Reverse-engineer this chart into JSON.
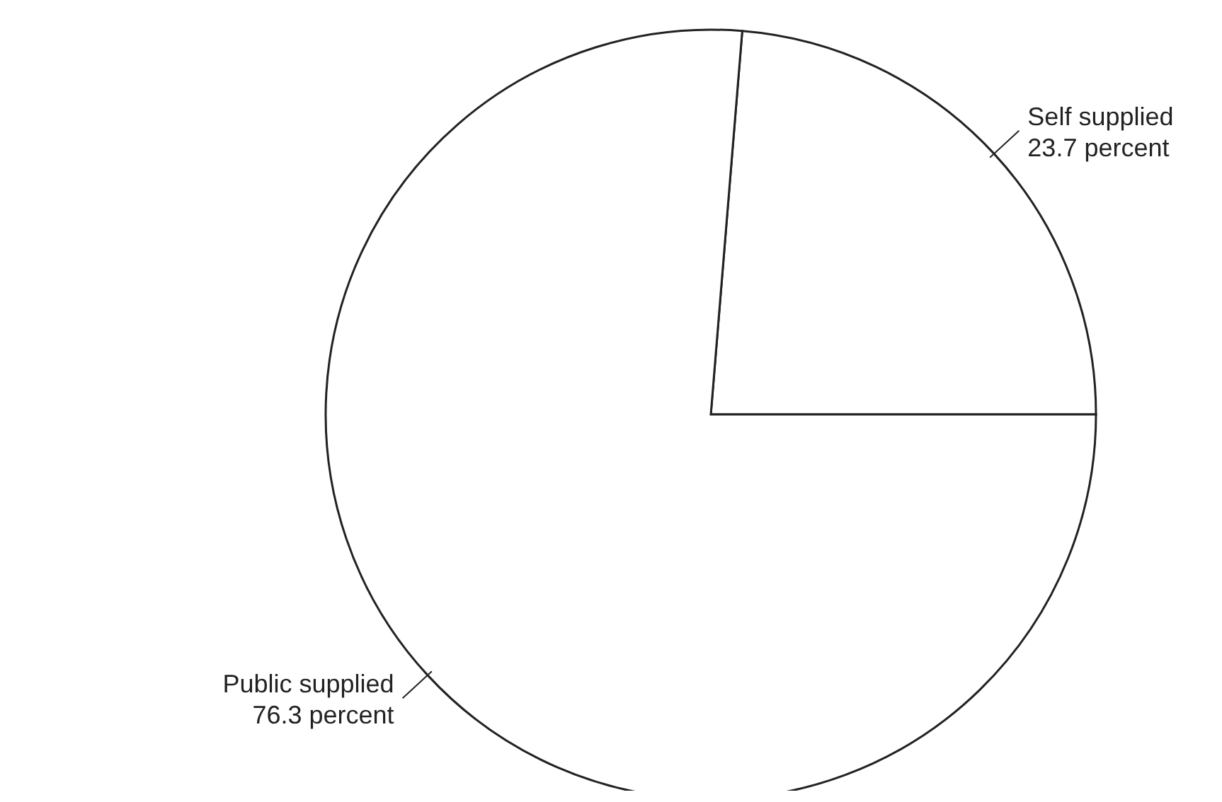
{
  "chart_data": {
    "type": "pie",
    "categories": [
      "Self supplied",
      "Public supplied"
    ],
    "values": [
      23.7,
      76.3
    ],
    "value_labels": [
      "23.7 percent",
      "76.3 percent"
    ],
    "colors": [
      "#ffffff",
      "#ffffff"
    ]
  }
}
